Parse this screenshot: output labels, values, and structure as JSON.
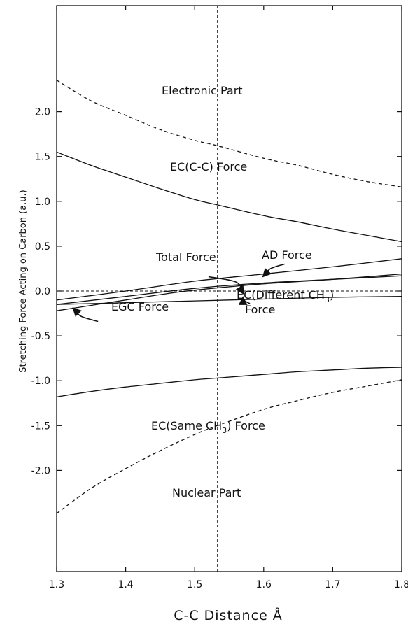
{
  "chart_data": {
    "type": "line",
    "title": "",
    "xlabel": "C-C Distance   Å",
    "ylabel": "Stretching Force Acting on Carbon   (a.u.)",
    "xlim": [
      1.3,
      1.8
    ],
    "ylim": [
      -2.5,
      2.5
    ],
    "xticks": [
      1.3,
      1.4,
      1.5,
      1.6,
      1.7,
      1.8
    ],
    "xtick_labels": [
      "1.3",
      "1.4",
      "1.5",
      "1.6",
      "1.7",
      "1.8"
    ],
    "yticks": [
      2.0,
      1.5,
      1.0,
      0.5,
      0.0,
      -0.5,
      -1.0,
      -1.5,
      -2.0
    ],
    "ytick_labels": [
      "2.0",
      "1.5",
      "1.0",
      "0.5",
      "0.0",
      "-0.5",
      "-1.0",
      "-1.5",
      "-2.0"
    ],
    "reference_lines": {
      "vertical_x": 1.533,
      "horizontal_y": 0.0
    },
    "series": [
      {
        "id": "electronic",
        "style": "dashed",
        "x": [
          1.3,
          1.35,
          1.4,
          1.45,
          1.5,
          1.533,
          1.6,
          1.65,
          1.7,
          1.75,
          1.8
        ],
        "y": [
          2.35,
          2.12,
          1.96,
          1.8,
          1.68,
          1.62,
          1.48,
          1.4,
          1.3,
          1.22,
          1.16
        ]
      },
      {
        "id": "ec-cc",
        "style": "solid",
        "x": [
          1.3,
          1.35,
          1.4,
          1.45,
          1.5,
          1.533,
          1.6,
          1.65,
          1.7,
          1.75,
          1.8
        ],
        "y": [
          1.55,
          1.4,
          1.27,
          1.14,
          1.02,
          0.96,
          0.84,
          0.77,
          0.69,
          0.62,
          0.55
        ]
      },
      {
        "id": "ad",
        "style": "solid",
        "x": [
          1.3,
          1.4,
          1.5,
          1.6,
          1.7,
          1.8
        ],
        "y": [
          -0.1,
          0.0,
          0.11,
          0.19,
          0.27,
          0.36
        ]
      },
      {
        "id": "total",
        "style": "solid",
        "x": [
          1.3,
          1.4,
          1.5,
          1.6,
          1.7,
          1.8
        ],
        "y": [
          -0.15,
          -0.06,
          0.03,
          0.09,
          0.13,
          0.17
        ]
      },
      {
        "id": "egc",
        "style": "solid",
        "x": [
          1.3,
          1.35,
          1.4,
          1.45,
          1.5,
          1.6,
          1.7,
          1.8
        ],
        "y": [
          -0.22,
          -0.16,
          -0.1,
          -0.04,
          0.01,
          0.08,
          0.13,
          0.19
        ]
      },
      {
        "id": "ec-different-ch3",
        "style": "solid",
        "x": [
          1.3,
          1.4,
          1.5,
          1.6,
          1.7,
          1.8
        ],
        "y": [
          -0.15,
          -0.13,
          -0.11,
          -0.09,
          -0.07,
          -0.06
        ]
      },
      {
        "id": "ec-same-ch3",
        "style": "solid",
        "x": [
          1.3,
          1.35,
          1.4,
          1.45,
          1.5,
          1.533,
          1.6,
          1.65,
          1.7,
          1.75,
          1.8
        ],
        "y": [
          -1.18,
          -1.12,
          -1.07,
          -1.03,
          -0.99,
          -0.97,
          -0.93,
          -0.9,
          -0.88,
          -0.86,
          -0.85
        ]
      },
      {
        "id": "nuclear",
        "style": "dashed",
        "x": [
          1.3,
          1.35,
          1.4,
          1.45,
          1.5,
          1.533,
          1.6,
          1.65,
          1.7,
          1.75,
          1.8
        ],
        "y": [
          -2.48,
          -2.2,
          -1.98,
          -1.78,
          -1.6,
          -1.5,
          -1.32,
          -1.22,
          -1.13,
          -1.06,
          -0.99
        ]
      }
    ],
    "annotations": [
      {
        "id": "electronic-part",
        "text": "Electronic Part"
      },
      {
        "id": "ec-cc-force",
        "text": "EC(C-C) Force"
      },
      {
        "id": "total-force",
        "text": "Total Force"
      },
      {
        "id": "ad-force",
        "text": "AD Force"
      },
      {
        "id": "ec-different-ch3-force",
        "text": "EC(Different CH",
        "sub": "3",
        "tail": ")",
        "line2": "Force"
      },
      {
        "id": "egc-force",
        "text": "EGC Force"
      },
      {
        "id": "ec-same-ch3-force",
        "text": "EC(Same CH",
        "sub": "3",
        "tail": ") Force"
      },
      {
        "id": "nuclear-part",
        "text": "Nuclear Part"
      }
    ]
  }
}
